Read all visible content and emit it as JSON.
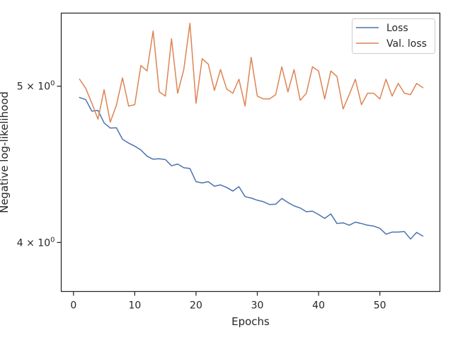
{
  "chart_data": {
    "type": "line",
    "xlabel": "Epochs",
    "ylabel": "Negative log-likelihood",
    "yscale": "log",
    "xlim": [
      -2,
      59.8
    ],
    "ylim": [
      3.73,
      5.55
    ],
    "x_ticks": [
      0,
      10,
      20,
      30,
      40,
      50
    ],
    "y_ticks": [
      {
        "value": 4.0,
        "label_base": "4",
        "label_exp": "0"
      },
      {
        "value": 5.0,
        "label_base": "5",
        "label_exp": "0"
      }
    ],
    "legend": {
      "position": "top-right"
    },
    "series": [
      {
        "name": "Loss",
        "color": "#4c72b0",
        "x": [
          1,
          2,
          3,
          4,
          5,
          6,
          7,
          8,
          9,
          10,
          11,
          12,
          13,
          14,
          15,
          16,
          17,
          18,
          19,
          20,
          21,
          22,
          23,
          24,
          25,
          26,
          27,
          28,
          29,
          30,
          31,
          32,
          33,
          34,
          35,
          36,
          37,
          38,
          39,
          40,
          41,
          42,
          43,
          44,
          45,
          46,
          47,
          48,
          49,
          50,
          51,
          52,
          53,
          54,
          55,
          56,
          57
        ],
        "values": [
          4.92,
          4.905,
          4.825,
          4.83,
          4.745,
          4.71,
          4.712,
          4.635,
          4.61,
          4.59,
          4.565,
          4.525,
          4.505,
          4.508,
          4.503,
          4.463,
          4.474,
          4.451,
          4.446,
          4.363,
          4.355,
          4.363,
          4.335,
          4.343,
          4.327,
          4.305,
          4.332,
          4.271,
          4.262,
          4.249,
          4.24,
          4.223,
          4.225,
          4.26,
          4.235,
          4.215,
          4.202,
          4.18,
          4.183,
          4.163,
          4.14,
          4.167,
          4.11,
          4.114,
          4.1,
          4.118,
          4.11,
          4.1,
          4.095,
          4.082,
          4.048,
          4.06,
          4.06,
          4.063,
          4.02,
          4.058,
          4.037
        ]
      },
      {
        "name": "Val. loss",
        "color": "#dd8452",
        "x": [
          1,
          2,
          3,
          4,
          5,
          6,
          7,
          8,
          9,
          10,
          11,
          12,
          13,
          14,
          15,
          16,
          17,
          18,
          19,
          20,
          21,
          22,
          23,
          24,
          25,
          26,
          27,
          28,
          29,
          30,
          31,
          32,
          33,
          34,
          35,
          36,
          37,
          38,
          39,
          40,
          41,
          42,
          43,
          44,
          45,
          46,
          47,
          48,
          49,
          50,
          51,
          52,
          53,
          54,
          55,
          56,
          57
        ],
        "values": [
          5.05,
          4.985,
          4.88,
          4.77,
          4.975,
          4.75,
          4.865,
          5.06,
          4.86,
          4.87,
          5.15,
          5.11,
          5.41,
          4.96,
          4.93,
          5.35,
          4.95,
          5.12,
          5.47,
          4.88,
          5.2,
          5.16,
          4.97,
          5.12,
          4.98,
          4.95,
          5.05,
          4.86,
          5.21,
          4.93,
          4.91,
          4.91,
          4.94,
          5.14,
          4.96,
          5.12,
          4.9,
          4.95,
          5.14,
          5.11,
          4.91,
          5.11,
          5.07,
          4.84,
          4.94,
          5.05,
          4.87,
          4.95,
          4.95,
          4.91,
          5.05,
          4.93,
          5.02,
          4.95,
          4.94,
          5.02,
          4.99
        ]
      }
    ]
  }
}
